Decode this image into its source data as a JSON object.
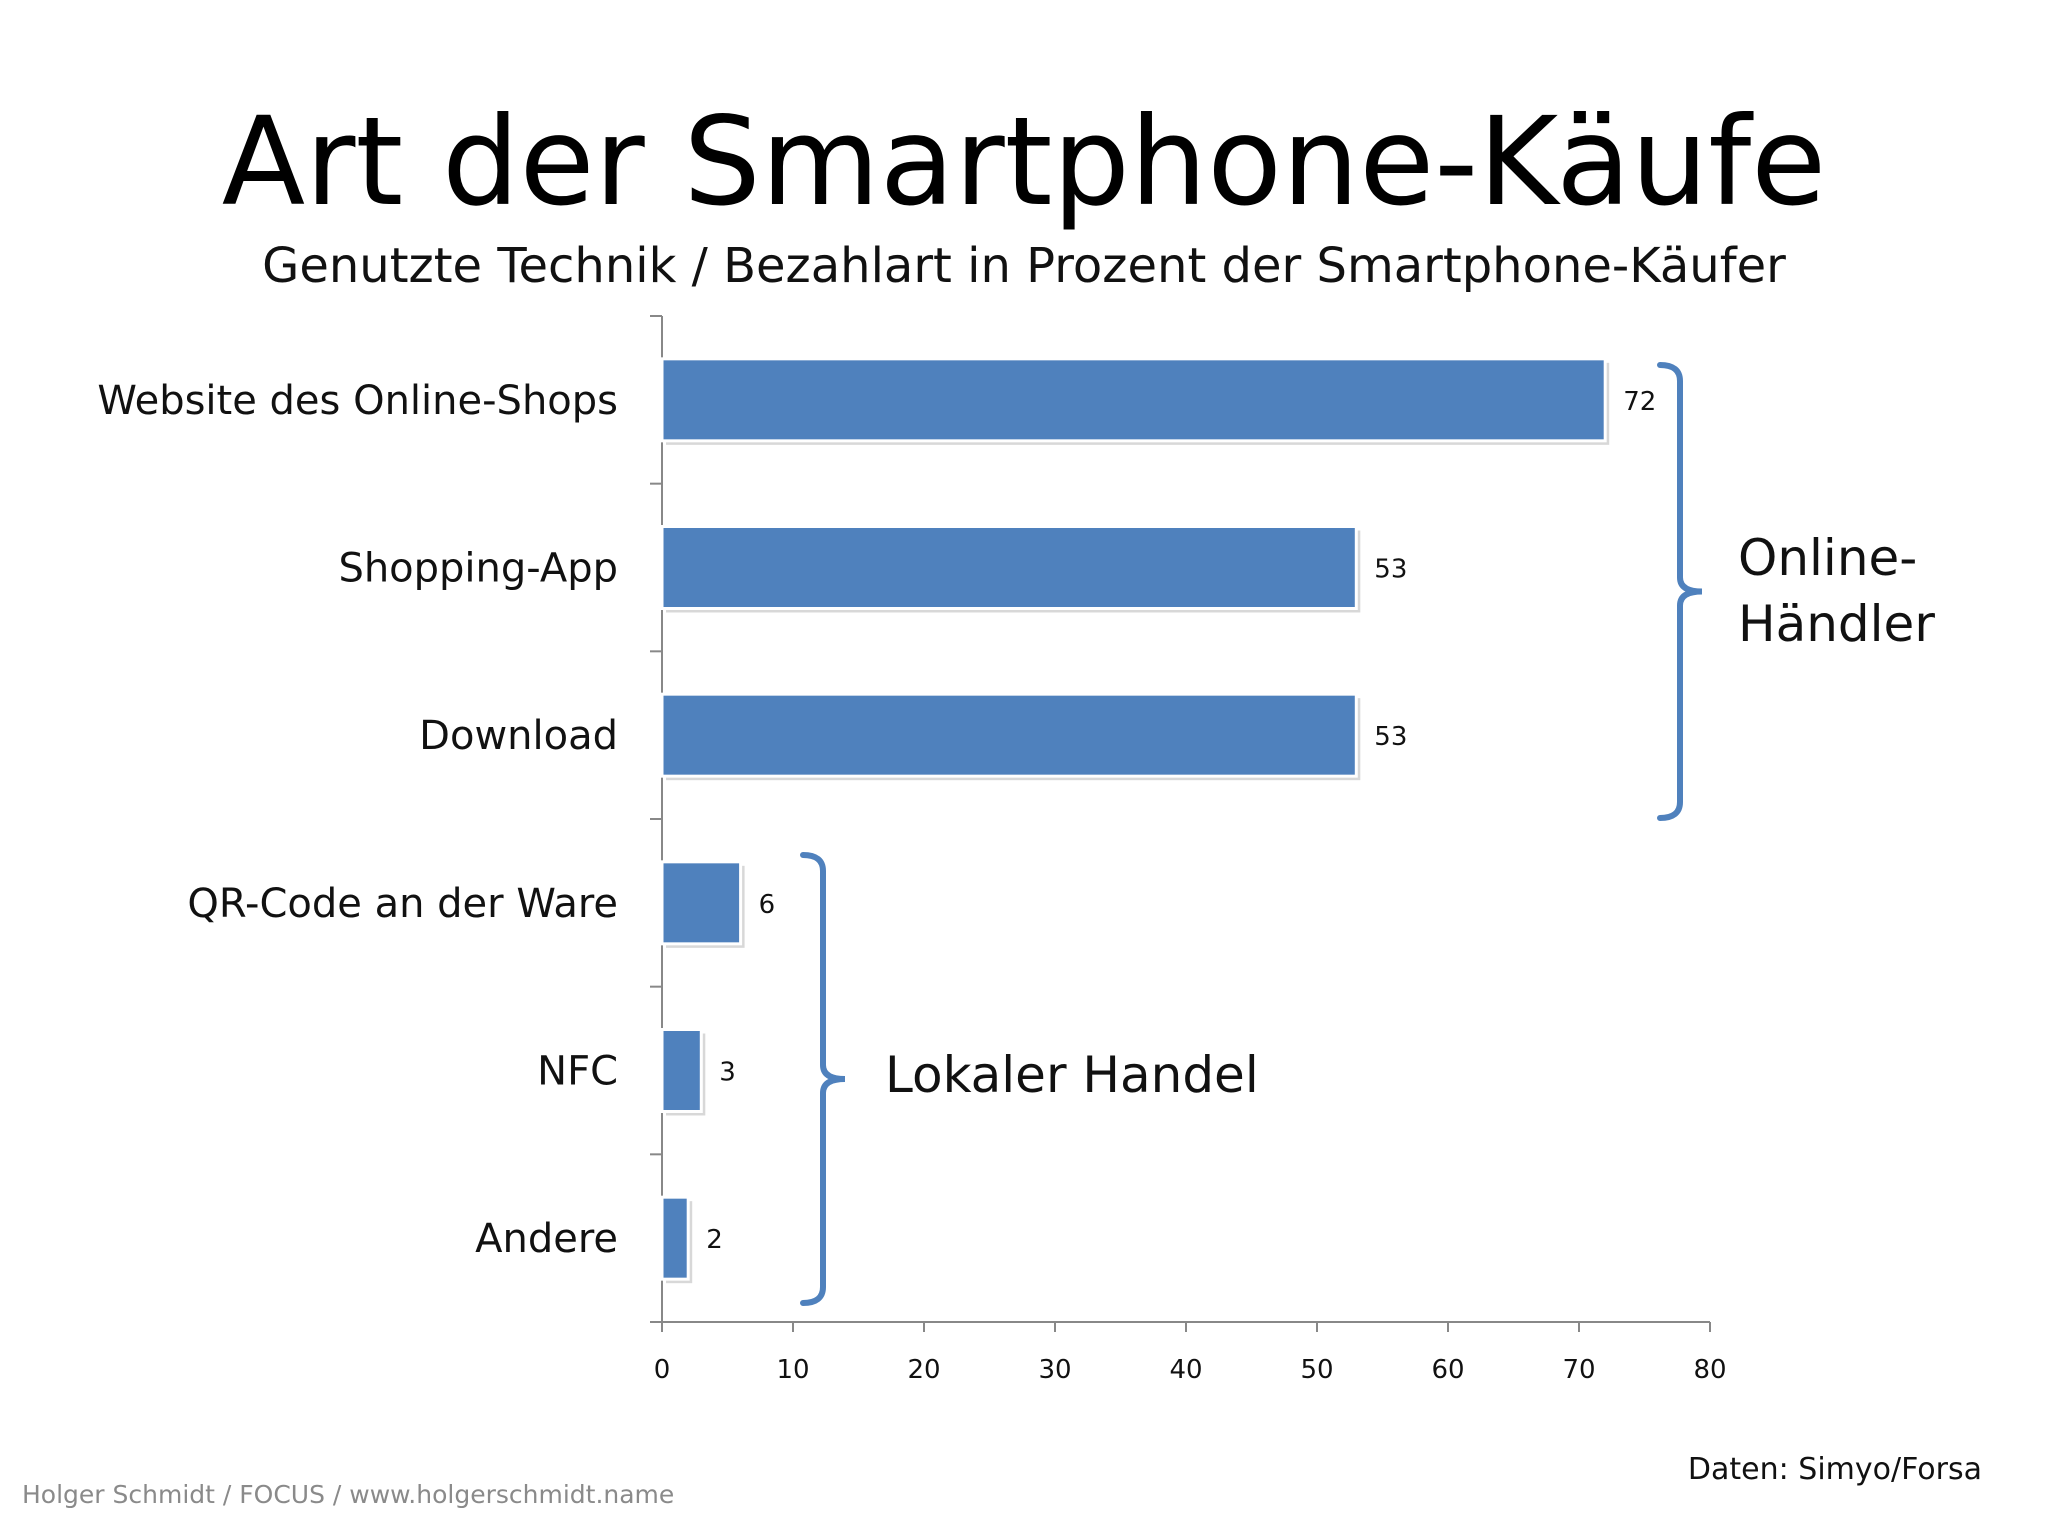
{
  "page": {
    "title": "Art der Smartphone-Käufe",
    "subtitle": "Genutzte Technik / Bezahlart in Prozent der Smartphone-Käufer",
    "footer_left": "Holger Schmidt / FOCUS / www.holgerschmidt.name",
    "footer_right": "Daten: Simyo/Forsa"
  },
  "chart_data": {
    "type": "bar",
    "orientation": "horizontal",
    "categories": [
      "Website des Online-Shops",
      "Shopping-App",
      "Download",
      "QR-Code an der Ware",
      "NFC",
      "Andere"
    ],
    "values": [
      72,
      53,
      53,
      6,
      3,
      2
    ],
    "xlim": [
      0,
      80
    ],
    "xticks": [
      0,
      10,
      20,
      30,
      40,
      50,
      60,
      70,
      80
    ],
    "bar_color": "#4f81bd",
    "grid": false,
    "annotations": [
      {
        "text": "Online-\nHändler",
        "bracket_categories": [
          0,
          2
        ]
      },
      {
        "text": "Lokaler Handel",
        "bracket_categories": [
          3,
          5
        ]
      }
    ]
  }
}
